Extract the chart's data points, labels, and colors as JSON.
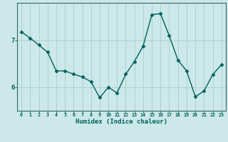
{
  "x": [
    0,
    1,
    2,
    3,
    4,
    5,
    6,
    7,
    8,
    9,
    10,
    11,
    12,
    13,
    14,
    15,
    16,
    17,
    18,
    19,
    20,
    21,
    22,
    23
  ],
  "y": [
    7.18,
    7.05,
    6.9,
    6.75,
    6.35,
    6.35,
    6.28,
    6.22,
    6.12,
    5.78,
    6.0,
    5.88,
    6.28,
    6.55,
    6.88,
    7.55,
    7.57,
    7.1,
    6.58,
    6.35,
    5.8,
    5.92,
    6.27,
    6.48
  ],
  "line_color": "#006060",
  "marker": "D",
  "markersize": 2.5,
  "linewidth": 1.0,
  "bg_color": "#cce8e8",
  "grid_color": "#aacece",
  "axis_color": "#336666",
  "xlabel": "Humidex (Indice chaleur)",
  "xlabel_fontsize": 6.5,
  "xlabel_color": "#006060",
  "ytick_labels": [
    "6",
    "7"
  ],
  "ytick_values": [
    6.0,
    7.0
  ],
  "xtick_labels": [
    "0",
    "1",
    "2",
    "3",
    "4",
    "5",
    "6",
    "7",
    "8",
    "9",
    "10",
    "11",
    "12",
    "13",
    "14",
    "15",
    "16",
    "17",
    "18",
    "19",
    "20",
    "21",
    "22",
    "23"
  ],
  "ylim": [
    5.5,
    7.8
  ],
  "xlim": [
    -0.5,
    23.5
  ]
}
